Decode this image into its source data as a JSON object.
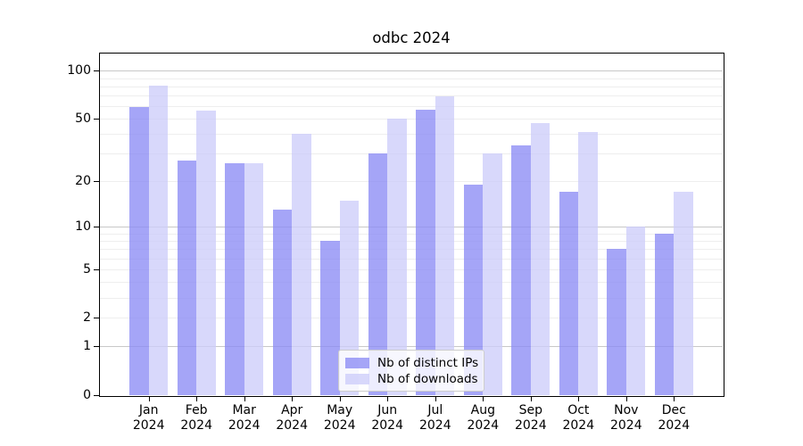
{
  "figure": {
    "background": "#ffffff",
    "plot_background": "#ffffff",
    "spine_color": "#000000",
    "major_grid_color": "#c8c8c8",
    "minor_grid_color": "#eeeeee"
  },
  "chart_data": {
    "type": "bar",
    "title": "odbc 2024",
    "xlabel": "",
    "ylabel": "",
    "grid": "on",
    "legend_position": "lower center",
    "y_scale": "log1p",
    "ylim": [
      0,
      128
    ],
    "y_ticks": [
      0,
      1,
      2,
      5,
      10,
      20,
      50,
      100
    ],
    "major_gridlines": [
      1,
      10,
      100
    ],
    "minor_gridlines": [
      2,
      3,
      4,
      5,
      6,
      7,
      8,
      9,
      20,
      30,
      40,
      50,
      60,
      70,
      80,
      90
    ],
    "categories": [
      "Jan 2024",
      "Feb 2024",
      "Mar 2024",
      "Apr 2024",
      "May 2024",
      "Jun 2024",
      "Jul 2024",
      "Aug 2024",
      "Sep 2024",
      "Oct 2024",
      "Nov 2024",
      "Dec 2024"
    ],
    "series": [
      {
        "name": "Nb of distinct IPs",
        "color": "#a5a5f7",
        "fill": "rgba(140,140,245,0.78)",
        "values": [
          59,
          27,
          26,
          13,
          8,
          30,
          57,
          19,
          34,
          17,
          7,
          9
        ]
      },
      {
        "name": "Nb of downloads",
        "color": "#d8d8fa",
        "fill": "rgba(205,205,250,0.78)",
        "values": [
          81,
          56,
          26,
          40,
          15,
          50,
          69,
          30,
          47,
          41,
          10,
          17
        ]
      }
    ]
  }
}
